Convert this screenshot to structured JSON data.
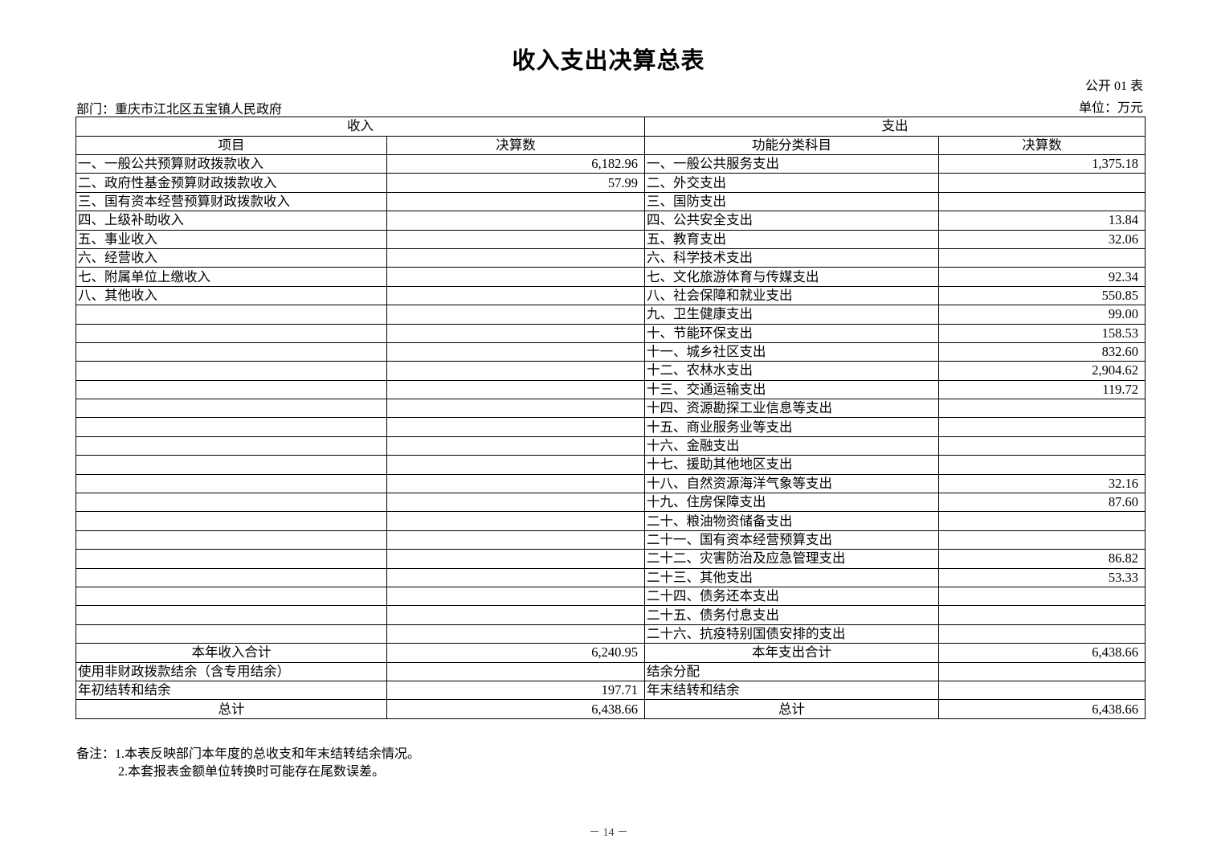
{
  "title": "收入支出决算总表",
  "table_no": "公开 01 表",
  "department": "部门：重庆市江北区五宝镇人民政府",
  "unit": "单位：万元",
  "header": {
    "income": "收入",
    "expense": "支出",
    "income_item": "项目",
    "income_amount": "决算数",
    "expense_item": "功能分类科目",
    "expense_amount": "决算数"
  },
  "rows": [
    {
      "income_item": "一、一般公共预算财政拨款收入",
      "income_amount": "6,182.96",
      "expense_item": "一、一般公共服务支出",
      "expense_amount": "1,375.18"
    },
    {
      "income_item": "二、政府性基金预算财政拨款收入",
      "income_amount": "57.99",
      "expense_item": "二、外交支出",
      "expense_amount": ""
    },
    {
      "income_item": "三、国有资本经营预算财政拨款收入",
      "income_amount": "",
      "expense_item": "三、国防支出",
      "expense_amount": ""
    },
    {
      "income_item": "四、上级补助收入",
      "income_amount": "",
      "expense_item": "四、公共安全支出",
      "expense_amount": "13.84"
    },
    {
      "income_item": "五、事业收入",
      "income_amount": "",
      "expense_item": "五、教育支出",
      "expense_amount": "32.06"
    },
    {
      "income_item": "六、经营收入",
      "income_amount": "",
      "expense_item": "六、科学技术支出",
      "expense_amount": ""
    },
    {
      "income_item": "七、附属单位上缴收入",
      "income_amount": "",
      "expense_item": "七、文化旅游体育与传媒支出",
      "expense_amount": "92.34"
    },
    {
      "income_item": "八、其他收入",
      "income_amount": "",
      "expense_item": "八、社会保障和就业支出",
      "expense_amount": "550.85"
    },
    {
      "income_item": "",
      "income_amount": "",
      "expense_item": "九、卫生健康支出",
      "expense_amount": "99.00"
    },
    {
      "income_item": "",
      "income_amount": "",
      "expense_item": "十、节能环保支出",
      "expense_amount": "158.53"
    },
    {
      "income_item": "",
      "income_amount": "",
      "expense_item": "十一、城乡社区支出",
      "expense_amount": "832.60"
    },
    {
      "income_item": "",
      "income_amount": "",
      "expense_item": "十二、农林水支出",
      "expense_amount": "2,904.62"
    },
    {
      "income_item": "",
      "income_amount": "",
      "expense_item": "十三、交通运输支出",
      "expense_amount": "119.72"
    },
    {
      "income_item": "",
      "income_amount": "",
      "expense_item": "十四、资源勘探工业信息等支出",
      "expense_amount": ""
    },
    {
      "income_item": "",
      "income_amount": "",
      "expense_item": "十五、商业服务业等支出",
      "expense_amount": ""
    },
    {
      "income_item": "",
      "income_amount": "",
      "expense_item": "十六、金融支出",
      "expense_amount": ""
    },
    {
      "income_item": "",
      "income_amount": "",
      "expense_item": "十七、援助其他地区支出",
      "expense_amount": ""
    },
    {
      "income_item": "",
      "income_amount": "",
      "expense_item": "十八、自然资源海洋气象等支出",
      "expense_amount": "32.16"
    },
    {
      "income_item": "",
      "income_amount": "",
      "expense_item": "十九、住房保障支出",
      "expense_amount": "87.60"
    },
    {
      "income_item": "",
      "income_amount": "",
      "expense_item": "二十、粮油物资储备支出",
      "expense_amount": ""
    },
    {
      "income_item": "",
      "income_amount": "",
      "expense_item": "二十一、国有资本经营预算支出",
      "expense_amount": ""
    },
    {
      "income_item": "",
      "income_amount": "",
      "expense_item": "二十二、灾害防治及应急管理支出",
      "expense_amount": "86.82"
    },
    {
      "income_item": "",
      "income_amount": "",
      "expense_item": "二十三、其他支出",
      "expense_amount": "53.33"
    },
    {
      "income_item": "",
      "income_amount": "",
      "expense_item": "二十四、债务还本支出",
      "expense_amount": ""
    },
    {
      "income_item": "",
      "income_amount": "",
      "expense_item": "二十五、债务付息支出",
      "expense_amount": ""
    },
    {
      "income_item": "",
      "income_amount": "",
      "expense_item": "二十六、抗疫特别国债安排的支出",
      "expense_amount": ""
    }
  ],
  "summary_rows": [
    {
      "income_item": "本年收入合计",
      "income_amount": "6,240.95",
      "expense_item": "本年支出合计",
      "expense_amount": "6,438.66",
      "centered": true
    },
    {
      "income_item": "使用非财政拨款结余（含专用结余）",
      "income_amount": "",
      "expense_item": "结余分配",
      "expense_amount": "",
      "centered": false
    },
    {
      "income_item": "年初结转和结余",
      "income_amount": "197.71",
      "expense_item": "年末结转和结余",
      "expense_amount": "",
      "centered": false
    },
    {
      "income_item": "总计",
      "income_amount": "6,438.66",
      "expense_item": "总计",
      "expense_amount": "6,438.66",
      "centered": true
    }
  ],
  "notes": [
    "备注：1.本表反映部门本年度的总收支和年末结转结余情况。",
    "2.本套报表金额单位转换时可能存在尾数误差。"
  ],
  "page_number": "－ 14 －"
}
